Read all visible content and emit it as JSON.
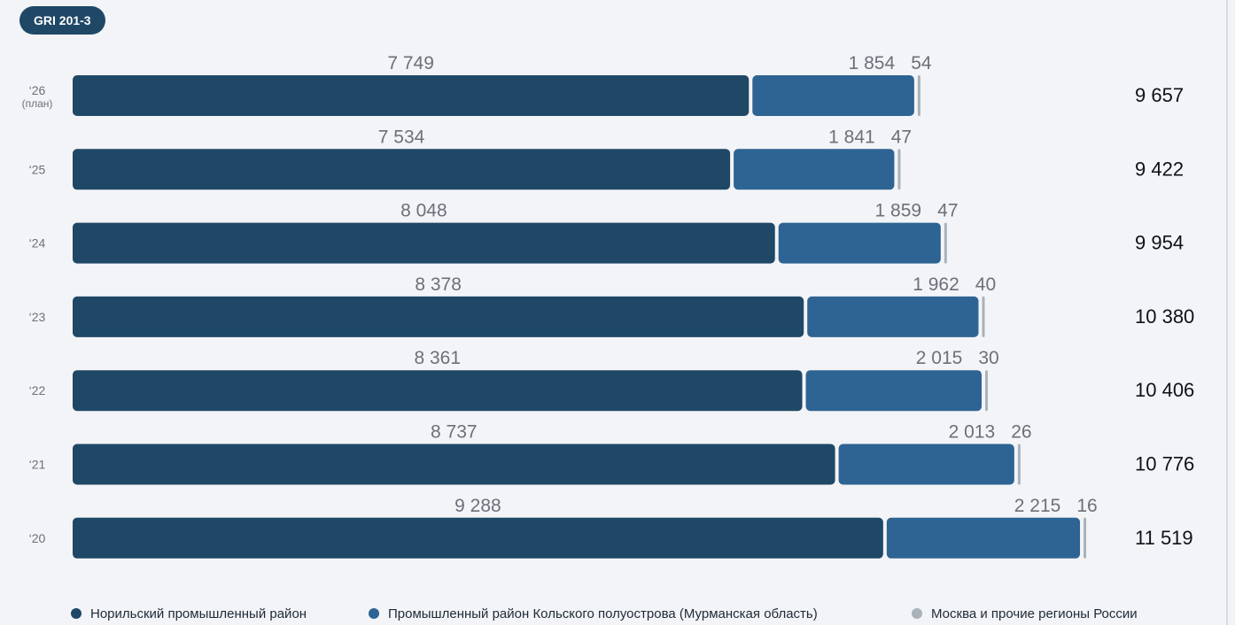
{
  "badge": "GRI 201-3",
  "colors": {
    "series_1": "#1f4867",
    "series_2": "#2e6493",
    "series_3": "#a9b2ba",
    "label_text": "#6b7079",
    "total_text": "#0d1218"
  },
  "chart_data": {
    "type": "bar",
    "orientation": "horizontal",
    "stacked": true,
    "categories": [
      {
        "label": "‘26",
        "sub": "(план)"
      },
      {
        "label": "‘25",
        "sub": ""
      },
      {
        "label": "‘24",
        "sub": ""
      },
      {
        "label": "‘23",
        "sub": ""
      },
      {
        "label": "‘22",
        "sub": ""
      },
      {
        "label": "‘21",
        "sub": ""
      },
      {
        "label": "‘20",
        "sub": ""
      }
    ],
    "series": [
      {
        "name": "Норильский промышленный район",
        "values": [
          7749,
          7534,
          8048,
          8378,
          8361,
          8737,
          9288
        ],
        "labels": [
          "7 749",
          "7 534",
          "8 048",
          "8 378",
          "8 361",
          "8 737",
          "9 288"
        ]
      },
      {
        "name": "Промышленный район Кольского полуострова (Мурманская область)",
        "values": [
          1854,
          1841,
          1859,
          1962,
          2015,
          2013,
          2215
        ],
        "labels": [
          "1 854",
          "1 841",
          "1 859",
          "1 962",
          "2 015",
          "2 013",
          "2 215"
        ]
      },
      {
        "name": "Москва и прочие регионы России",
        "values": [
          54,
          47,
          47,
          40,
          30,
          26,
          16
        ],
        "labels": [
          "54",
          "47",
          "47",
          "40",
          "30",
          "26",
          "16"
        ]
      }
    ],
    "totals": [
      "9 657",
      "9 422",
      "9 954",
      "10 380",
      "10 406",
      "10 776",
      "11 519"
    ],
    "grid": false,
    "legend": "bottom"
  }
}
